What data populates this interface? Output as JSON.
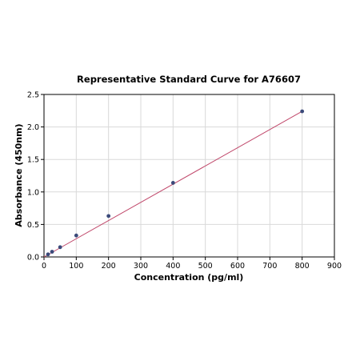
{
  "chart_data": {
    "type": "scatter",
    "title": "Representative Standard Curve for A76607",
    "xlabel": "Concentration (pg/ml)",
    "ylabel": "Absorbance (450nm)",
    "xlim": [
      0,
      900
    ],
    "ylim": [
      0,
      2.5
    ],
    "xticks": [
      "0",
      "100",
      "200",
      "300",
      "400",
      "500",
      "600",
      "700",
      "800",
      "900"
    ],
    "yticks": [
      "0.0",
      "0.5",
      "1.0",
      "1.5",
      "2.0",
      "2.5"
    ],
    "grid": true,
    "series": [
      {
        "points": [
          {
            "x": 12.5,
            "y": 0.04
          },
          {
            "x": 25,
            "y": 0.08
          },
          {
            "x": 50,
            "y": 0.15
          },
          {
            "x": 100,
            "y": 0.33
          },
          {
            "x": 200,
            "y": 0.63
          },
          {
            "x": 400,
            "y": 1.14
          },
          {
            "x": 800,
            "y": 2.24
          }
        ],
        "marker_color": "#3b4a7a"
      }
    ],
    "fit_line": {
      "from": {
        "x": 0,
        "y": 0.0
      },
      "to": {
        "x": 800,
        "y": 2.24
      },
      "color": "#c0476a"
    }
  }
}
